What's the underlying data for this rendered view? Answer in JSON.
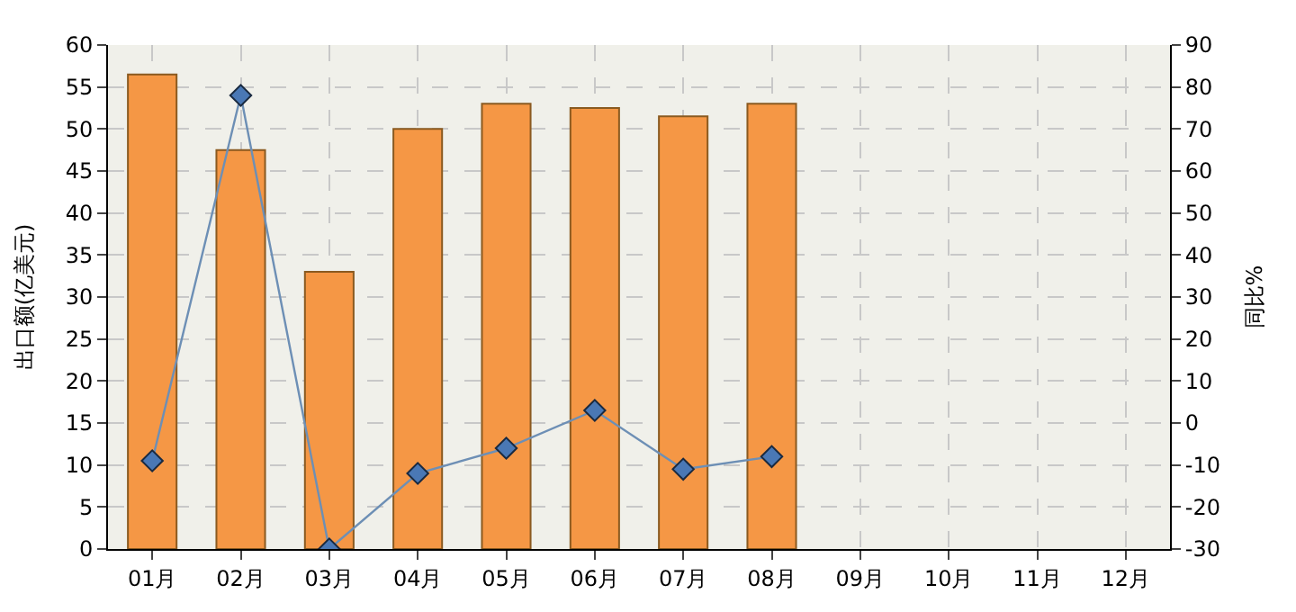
{
  "chart_data": {
    "type": "bar",
    "ylabel": "出口额(亿美元)",
    "y2label": "同比%",
    "categories": [
      "01月",
      "02月",
      "03月",
      "04月",
      "05月",
      "06月",
      "07月",
      "08月",
      "09月",
      "10月",
      "11月",
      "12月"
    ],
    "series": [
      {
        "color": "#f59745",
        "values": [
          56.5,
          47.5,
          33,
          50,
          53,
          52.5,
          51.5,
          53,
          null,
          null,
          null,
          null
        ]
      },
      {
        "type": "line",
        "axis": "y2",
        "color": "#6d8fb5",
        "marker": "diamond",
        "values": [
          -9,
          78,
          -30,
          -12,
          -6,
          3,
          -11,
          -8,
          null,
          null,
          null,
          null
        ]
      }
    ],
    "ylim": [
      0,
      60
    ],
    "yticks": [
      0,
      5,
      10,
      15,
      20,
      25,
      30,
      35,
      40,
      45,
      50,
      55,
      60
    ],
    "y2lim": [
      -30,
      90
    ],
    "y2ticks": [
      -30,
      -20,
      -10,
      0,
      10,
      20,
      30,
      40,
      50,
      60,
      70,
      80,
      90
    ],
    "grid": true
  }
}
